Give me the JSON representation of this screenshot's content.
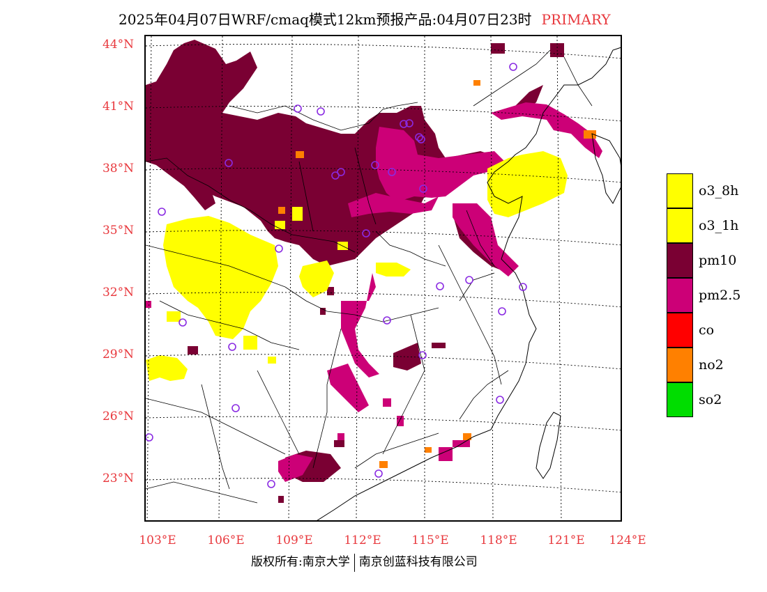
{
  "title": {
    "main": "2025年04月07日WRF/cmaq模式12km预报产品:04月07日23时",
    "tag": "PRIMARY"
  },
  "map": {
    "lon_range": [
      102.7,
      124
    ],
    "lat_range": [
      20.9,
      44.4
    ],
    "lat_ticks": [
      "44°N",
      "41°N",
      "38°N",
      "35°N",
      "32°N",
      "29°N",
      "26°N",
      "23°N"
    ],
    "lat_values": [
      44,
      41,
      38,
      35,
      32,
      29,
      26,
      23
    ],
    "lon_ticks": [
      "103°E",
      "106°E",
      "109°E",
      "112°E",
      "115°E",
      "118°E",
      "121°E",
      "124°E"
    ],
    "lon_values": [
      103,
      106,
      109,
      112,
      115,
      118,
      121,
      124
    ],
    "station_count_visible": 29
  },
  "legend": {
    "items": [
      {
        "label": "o3_8h",
        "color": "#ffff00"
      },
      {
        "label": "o3_1h",
        "color": "#ffff00"
      },
      {
        "label": "pm10",
        "color": "#7a0033"
      },
      {
        "label": "pm2.5",
        "color": "#cc0077"
      },
      {
        "label": "co",
        "color": "#ff0000"
      },
      {
        "label": "no2",
        "color": "#ff8000"
      },
      {
        "label": "so2",
        "color": "#00dd00"
      }
    ]
  },
  "footer": {
    "left": "版权所有:南京大学",
    "right": "南京创蓝科技有限公司"
  },
  "colors": {
    "pm10": "#7a0033",
    "pm25": "#cc0077",
    "o3": "#ffff00",
    "no2": "#ff8000",
    "station": "#8a2be2",
    "axis_label": "#e8383d"
  }
}
